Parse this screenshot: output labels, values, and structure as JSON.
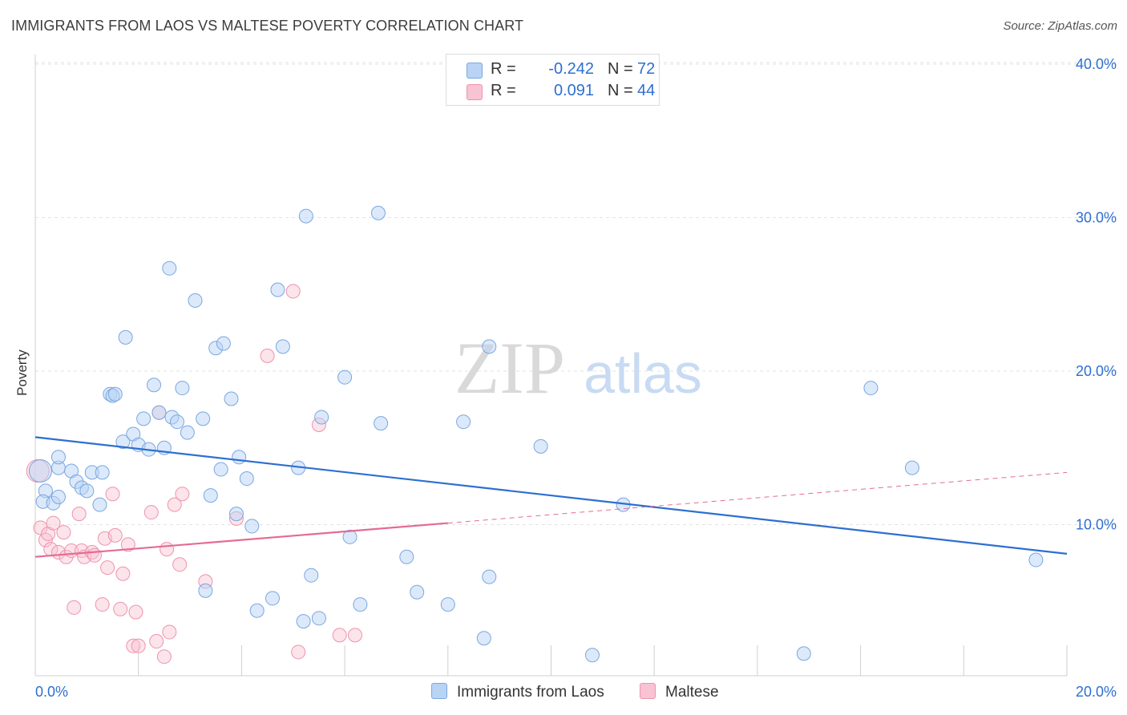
{
  "title": "IMMIGRANTS FROM LAOS VS MALTESE POVERTY CORRELATION CHART",
  "source": "Source: ZipAtlas.com",
  "watermark": {
    "zip": "ZIP",
    "atlas": "atlas"
  },
  "legend": {
    "rows": [
      {
        "r_label": "R =",
        "r_value": "-0.242",
        "n_label": "N =",
        "n_value": "72"
      },
      {
        "r_label": "R =",
        "r_value": "0.091",
        "n_label": "N =",
        "n_value": "44"
      }
    ]
  },
  "bottom_legend": {
    "laos": "Immigrants from Laos",
    "maltese": "Maltese"
  },
  "colors": {
    "laos_fill": "#b9d3f5",
    "laos_stroke": "#7aa7e0",
    "laos_line": "#2d6fd1",
    "maltese_fill": "#f8c3d2",
    "maltese_stroke": "#ee93ae",
    "maltese_line": "#e46b94",
    "axis_label": "#2d6fd1",
    "grid": "#e3e3e3"
  },
  "chart_data": {
    "type": "scatter",
    "title": "IMMIGRANTS FROM LAOS VS MALTESE POVERTY CORRELATION CHART",
    "xlabel": "",
    "ylabel": "Poverty",
    "xlim": [
      0,
      20
    ],
    "ylim": [
      0,
      41
    ],
    "x_tick_labels": [
      "0.0%",
      "20.0%"
    ],
    "y_ticks": [
      10,
      20,
      30,
      40
    ],
    "y_tick_labels": [
      "10.0%",
      "20.0%",
      "30.0%",
      "40.0%"
    ],
    "grid": true,
    "legend_position": "top-center",
    "series": [
      {
        "name": "Immigrants from Laos",
        "R": -0.242,
        "N": 72,
        "trend": {
          "x": [
            0,
            20
          ],
          "y": [
            15.7,
            8.1
          ]
        },
        "points": [
          [
            0.1,
            13.5
          ],
          [
            0.2,
            12.2
          ],
          [
            0.15,
            11.5
          ],
          [
            0.35,
            11.4
          ],
          [
            0.45,
            11.8
          ],
          [
            0.45,
            13.7
          ],
          [
            0.7,
            13.5
          ],
          [
            0.8,
            12.8
          ],
          [
            0.9,
            12.4
          ],
          [
            1.0,
            12.2
          ],
          [
            1.1,
            13.4
          ],
          [
            1.3,
            13.4
          ],
          [
            0.45,
            14.4
          ],
          [
            1.25,
            11.3
          ],
          [
            1.45,
            18.5
          ],
          [
            1.5,
            18.4
          ],
          [
            1.55,
            18.5
          ],
          [
            1.7,
            15.4
          ],
          [
            1.75,
            22.2
          ],
          [
            1.9,
            15.9
          ],
          [
            2.0,
            15.2
          ],
          [
            2.1,
            16.9
          ],
          [
            2.2,
            14.9
          ],
          [
            2.3,
            19.1
          ],
          [
            2.4,
            17.3
          ],
          [
            2.5,
            15.0
          ],
          [
            2.6,
            26.7
          ],
          [
            2.65,
            17.0
          ],
          [
            2.75,
            16.7
          ],
          [
            2.85,
            18.9
          ],
          [
            2.95,
            16.0
          ],
          [
            3.1,
            24.6
          ],
          [
            3.25,
            16.9
          ],
          [
            3.3,
            5.7
          ],
          [
            3.4,
            11.9
          ],
          [
            3.5,
            21.5
          ],
          [
            3.6,
            13.6
          ],
          [
            3.65,
            21.8
          ],
          [
            3.8,
            18.2
          ],
          [
            3.9,
            10.7
          ],
          [
            3.95,
            14.4
          ],
          [
            4.1,
            13.0
          ],
          [
            4.2,
            9.9
          ],
          [
            4.3,
            4.4
          ],
          [
            4.6,
            5.2
          ],
          [
            4.7,
            25.3
          ],
          [
            4.8,
            21.6
          ],
          [
            5.1,
            13.7
          ],
          [
            5.2,
            3.7
          ],
          [
            5.25,
            30.1
          ],
          [
            5.35,
            6.7
          ],
          [
            5.5,
            3.9
          ],
          [
            5.55,
            17.0
          ],
          [
            6.0,
            19.6
          ],
          [
            6.1,
            9.2
          ],
          [
            6.3,
            4.8
          ],
          [
            6.65,
            30.3
          ],
          [
            6.7,
            16.6
          ],
          [
            7.2,
            7.9
          ],
          [
            7.4,
            5.6
          ],
          [
            8.0,
            4.8
          ],
          [
            8.3,
            16.7
          ],
          [
            8.7,
            2.6
          ],
          [
            8.8,
            6.6
          ],
          [
            8.8,
            21.6
          ],
          [
            9.8,
            15.1
          ],
          [
            10.8,
            1.5
          ],
          [
            11.4,
            11.3
          ],
          [
            14.9,
            1.6
          ],
          [
            16.2,
            18.9
          ],
          [
            17.0,
            13.7
          ],
          [
            19.4,
            7.7
          ]
        ]
      },
      {
        "name": "Maltese",
        "R": 0.091,
        "N": 44,
        "trend": {
          "x": [
            0,
            8
          ],
          "y": [
            7.9,
            10.1
          ]
        },
        "trend_dashed": {
          "x": [
            8,
            20
          ],
          "y": [
            10.1,
            13.4
          ]
        },
        "points": [
          [
            0.05,
            13.5
          ],
          [
            0.1,
            9.8
          ],
          [
            0.2,
            9.0
          ],
          [
            0.25,
            9.4
          ],
          [
            0.3,
            8.4
          ],
          [
            0.35,
            10.1
          ],
          [
            0.45,
            8.2
          ],
          [
            0.55,
            9.5
          ],
          [
            0.6,
            7.9
          ],
          [
            0.7,
            8.3
          ],
          [
            0.75,
            4.6
          ],
          [
            0.85,
            10.7
          ],
          [
            0.9,
            8.3
          ],
          [
            0.95,
            7.9
          ],
          [
            1.1,
            8.2
          ],
          [
            1.15,
            8.0
          ],
          [
            1.3,
            4.8
          ],
          [
            1.35,
            9.1
          ],
          [
            1.4,
            7.2
          ],
          [
            1.5,
            12.0
          ],
          [
            1.55,
            9.3
          ],
          [
            1.65,
            4.5
          ],
          [
            1.7,
            6.8
          ],
          [
            1.8,
            8.7
          ],
          [
            1.9,
            2.1
          ],
          [
            1.95,
            4.3
          ],
          [
            2.0,
            2.1
          ],
          [
            2.25,
            10.8
          ],
          [
            2.35,
            2.4
          ],
          [
            2.4,
            17.3
          ],
          [
            2.5,
            1.4
          ],
          [
            2.55,
            8.4
          ],
          [
            2.6,
            3.0
          ],
          [
            2.7,
            11.3
          ],
          [
            2.8,
            7.4
          ],
          [
            2.85,
            12.0
          ],
          [
            3.3,
            6.3
          ],
          [
            3.9,
            10.4
          ],
          [
            4.5,
            21.0
          ],
          [
            5.0,
            25.2
          ],
          [
            5.1,
            1.7
          ],
          [
            5.5,
            16.5
          ],
          [
            5.9,
            2.8
          ],
          [
            6.2,
            2.8
          ]
        ]
      }
    ]
  }
}
